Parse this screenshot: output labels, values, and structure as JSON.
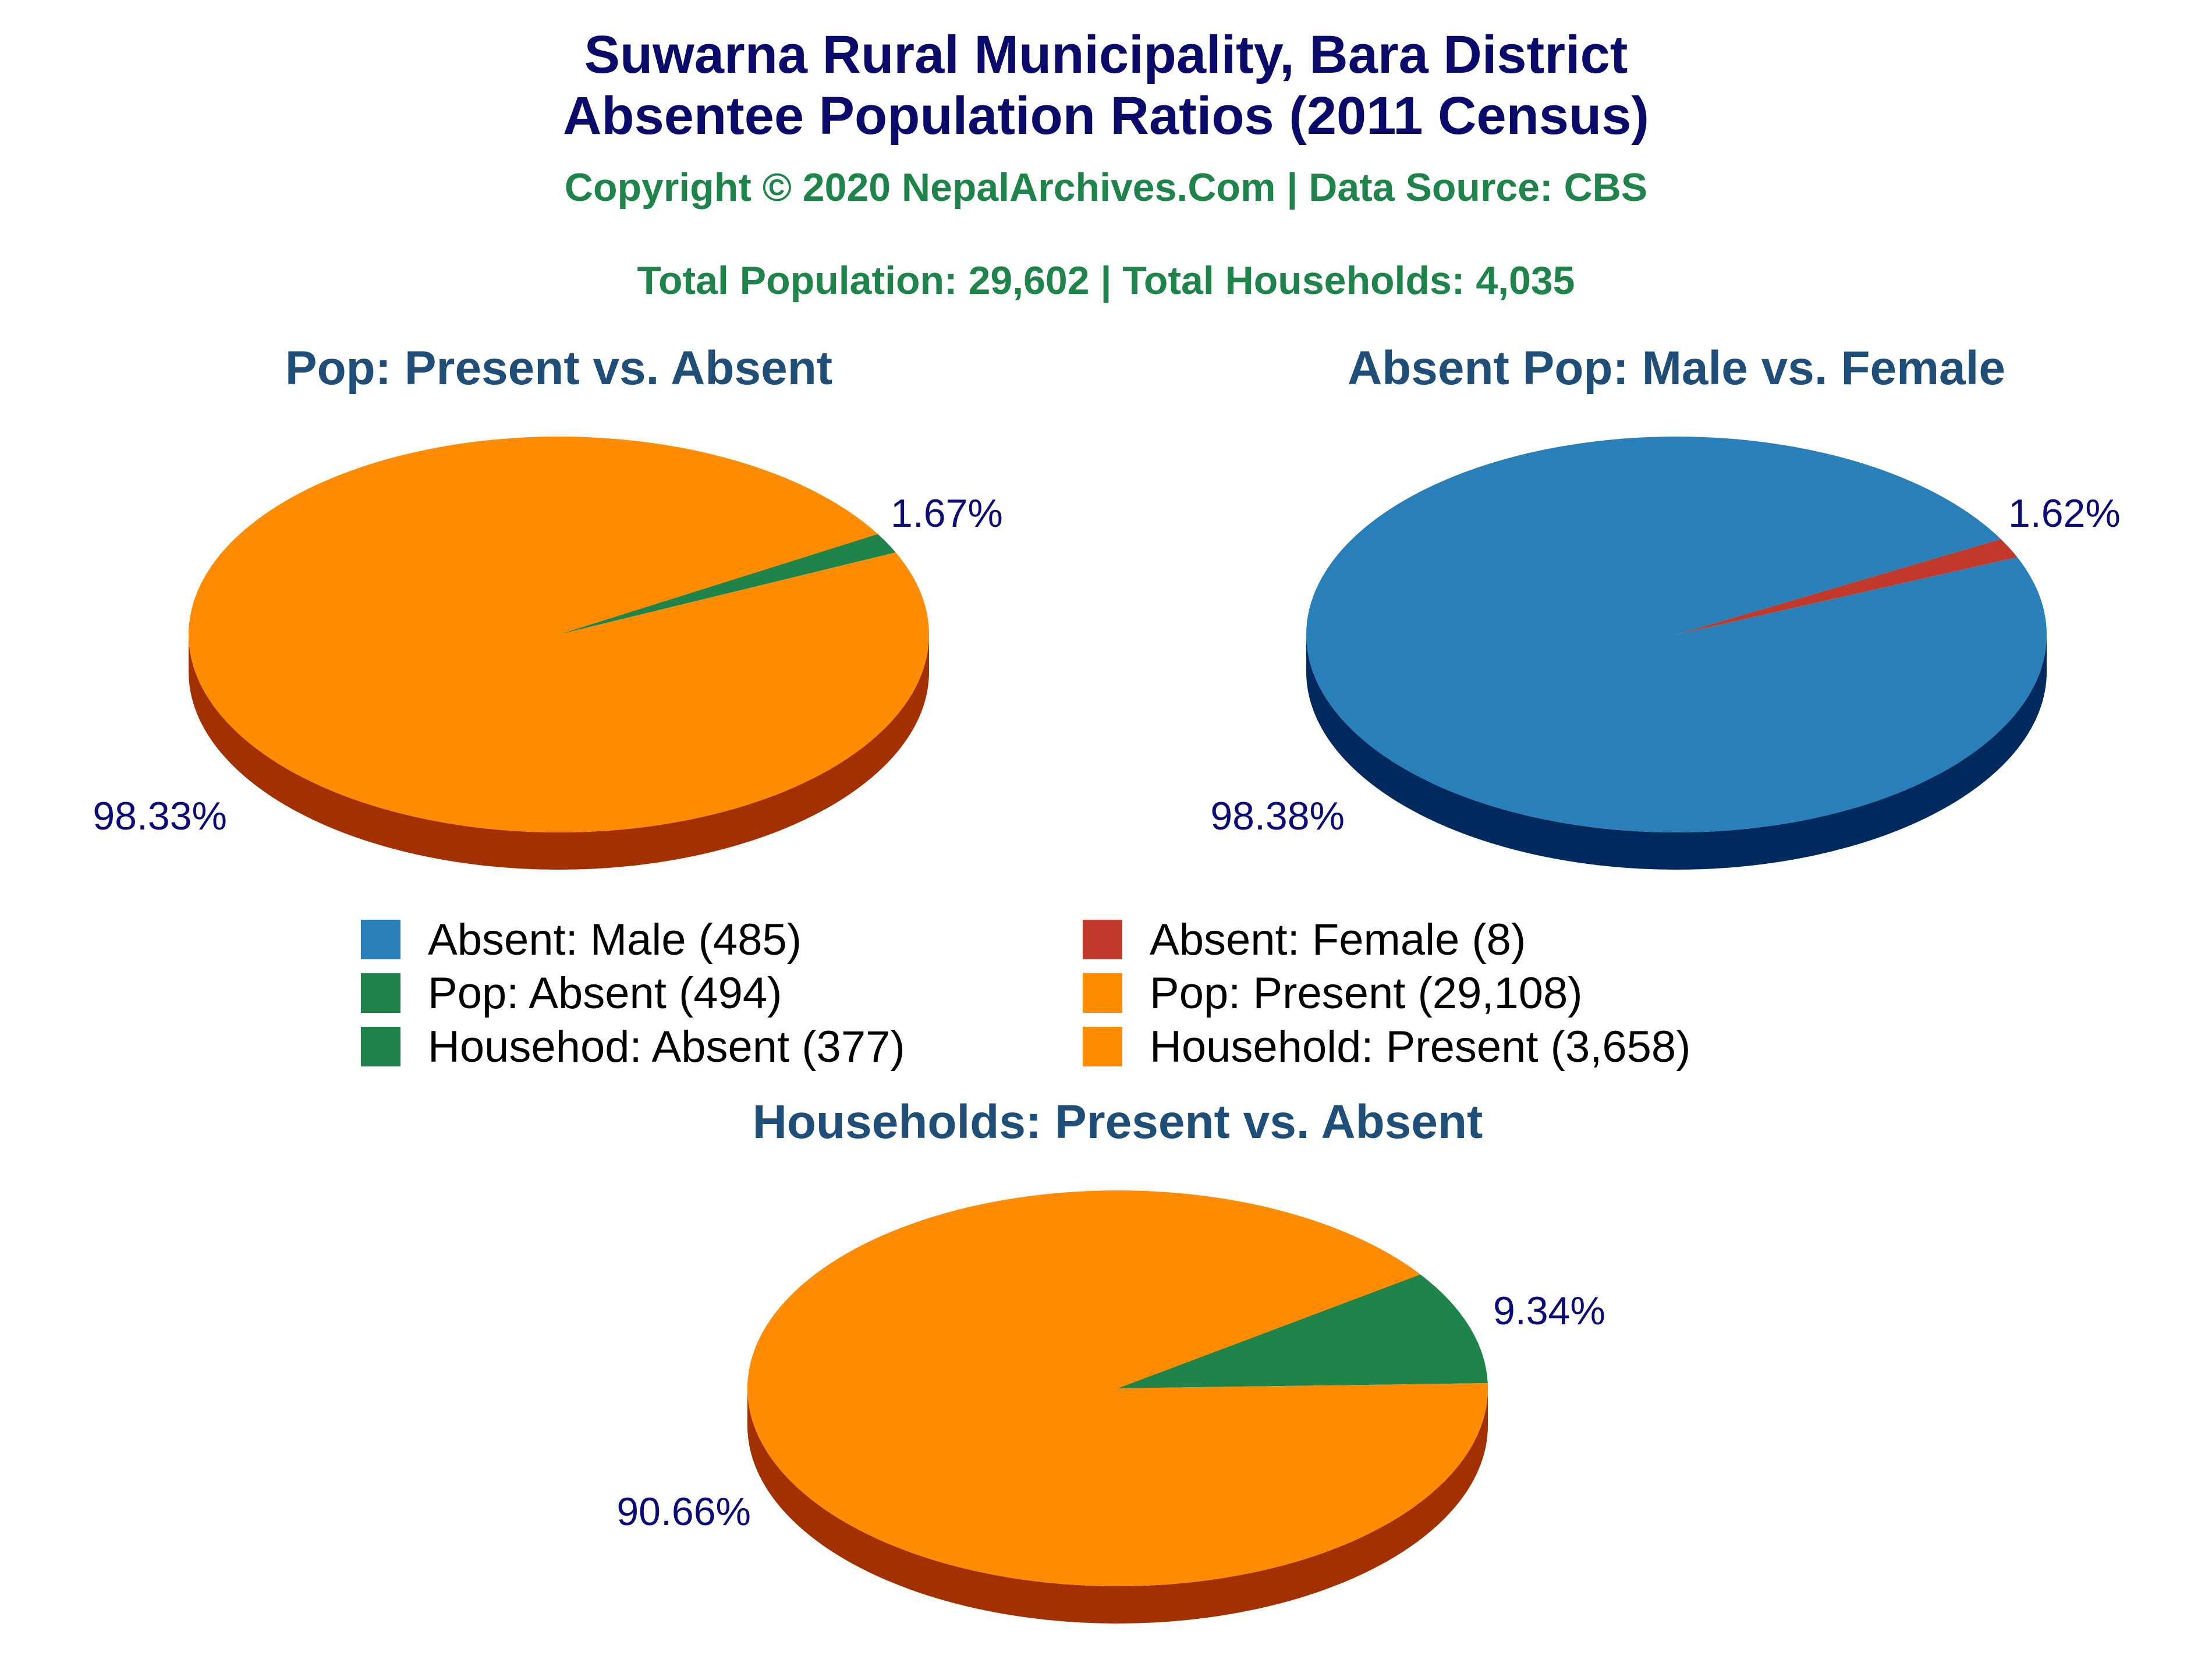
{
  "header": {
    "title_line1": "Suwarna Rural Municipality, Bara District",
    "title_line2": "Absentee Population Ratios (2011 Census)",
    "copyright": "Copyright © 2020 NepalArchives.Com | Data Source: CBS",
    "totals": "Total Population: 29,602 | Total Households: 4,035"
  },
  "chart_data": [
    {
      "type": "pie",
      "title": "Pop: Present vs. Absent",
      "slices": [
        {
          "label": "Pop: Absent",
          "value": 494,
          "percent_label": "1.67%",
          "color": "#1e8449",
          "side": "#0e5a2c"
        },
        {
          "label": "Pop: Present",
          "value": 29108,
          "percent_label": "98.33%",
          "color": "#ff8c00",
          "side": "#a33000"
        }
      ]
    },
    {
      "type": "pie",
      "title": "Absent Pop: Male vs. Female",
      "slices": [
        {
          "label": "Absent: Female",
          "value": 8,
          "percent_label": "1.62%",
          "color": "#c0392b",
          "side": "#7a1f16"
        },
        {
          "label": "Absent: Male",
          "value": 485,
          "percent_label": "98.38%",
          "color": "#2980b9",
          "side": "#002a5e"
        }
      ]
    },
    {
      "type": "pie",
      "title": "Households: Present vs. Absent",
      "slices": [
        {
          "label": "Househod: Absent",
          "value": 377,
          "percent_label": "9.34%",
          "color": "#1e8449",
          "side": "#0e5a2c"
        },
        {
          "label": "Household: Present",
          "value": 3658,
          "percent_label": "90.66%",
          "color": "#ff8c00",
          "side": "#a33000"
        }
      ]
    }
  ],
  "legend": [
    {
      "label": "Absent: Male (485)",
      "color": "#2980b9"
    },
    {
      "label": "Absent: Female (8)",
      "color": "#c0392b"
    },
    {
      "label": "Pop: Absent (494)",
      "color": "#1e8449"
    },
    {
      "label": "Pop: Present (29,108)",
      "color": "#ff8c00"
    },
    {
      "label": "Househod: Absent (377)",
      "color": "#1e8449"
    },
    {
      "label": "Household: Present (3,658)",
      "color": "#ff8c00"
    }
  ]
}
